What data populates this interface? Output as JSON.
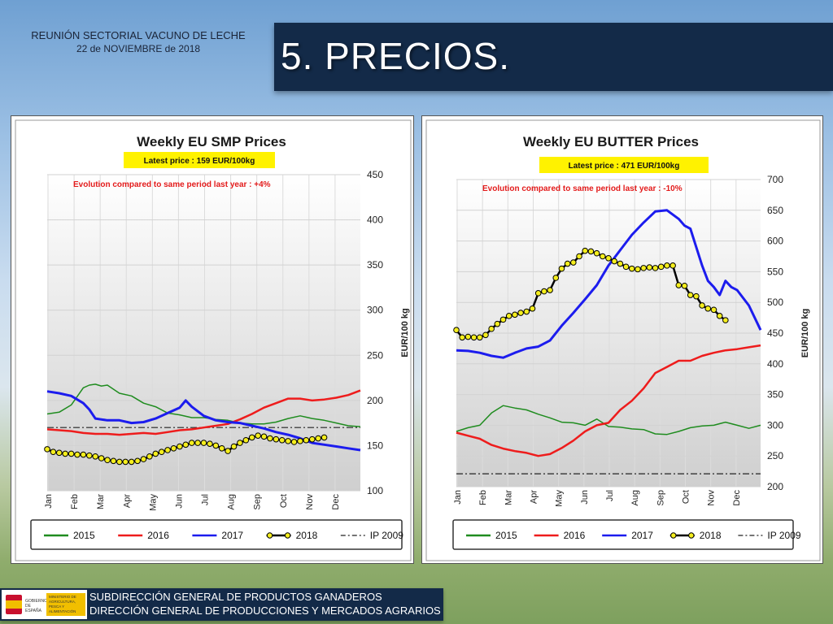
{
  "header": {
    "meeting": "REUNIÓN SECTORIAL VACUNO DE LECHE",
    "date": "22 de NOVIEMBRE de 2018",
    "title": "5. PRECIOS."
  },
  "footer": {
    "logo_gov": "GOBIERNO DE ESPAÑA",
    "logo_ministry": "MINISTERIO DE AGRICULTURA, PESCA Y ALIMENTACIÓN",
    "line1": "SUBDIRECCIÓN GENERAL DE PRODUCTOS GANADEROS",
    "line2": "DIRECCIÓN GENERAL DE PRODUCCIONES Y MERCADOS AGRARIOS"
  },
  "legend_labels": [
    "2015",
    "2016",
    "2017",
    "2018",
    "IP 2009"
  ],
  "colors": {
    "2015": "#1f8c1f",
    "2016": "#ee1c1c",
    "2017": "#1c1cee",
    "2018_line": "#000000",
    "2018_marker": "#f5ee1e",
    "ip": "#222222",
    "latest_box": "#fff200",
    "evolution_text": "#e31b1b"
  },
  "chart_data": [
    {
      "type": "line",
      "title": "Weekly EU SMP Prices",
      "latest_price": "Latest price : 159 EUR/100kg",
      "evolution": "Evolution compared to same period last year : +4%",
      "ylabel": "EUR/100 kg",
      "ylim": [
        100,
        450
      ],
      "yticks": [
        "100",
        "150",
        "200",
        "250",
        "300",
        "350",
        "400",
        "450"
      ],
      "months": [
        "Jan",
        "Feb",
        "Mar",
        "Apr",
        "May",
        "Jun",
        "Jul",
        "Aug",
        "Sep",
        "Oct",
        "Nov",
        "Dec"
      ],
      "xlim": [
        1,
        53
      ],
      "ip2009": 170,
      "series": [
        {
          "name": "2015",
          "x": [
            1,
            3,
            5,
            7,
            8,
            9,
            10,
            11,
            13,
            15,
            17,
            19,
            21,
            23,
            25,
            27,
            29,
            31,
            33,
            35,
            37,
            39,
            41,
            43,
            45,
            47,
            49,
            51,
            53
          ],
          "y": [
            185,
            187,
            195,
            214,
            217,
            218,
            216,
            217,
            208,
            205,
            197,
            193,
            186,
            184,
            181,
            181,
            179,
            178,
            175,
            174,
            174,
            176,
            180,
            183,
            180,
            178,
            175,
            172,
            171
          ]
        },
        {
          "name": "2016",
          "x": [
            1,
            3,
            5,
            7,
            9,
            11,
            13,
            15,
            17,
            19,
            21,
            23,
            25,
            27,
            29,
            31,
            33,
            35,
            37,
            39,
            41,
            43,
            45,
            47,
            49,
            51,
            53
          ],
          "y": [
            168,
            167,
            166,
            164,
            163,
            163,
            162,
            163,
            164,
            163,
            165,
            167,
            168,
            170,
            172,
            174,
            179,
            185,
            192,
            197,
            202,
            202,
            200,
            201,
            203,
            206,
            211
          ]
        },
        {
          "name": "2017",
          "x": [
            1,
            3,
            5,
            7,
            8,
            9,
            11,
            13,
            15,
            17,
            19,
            21,
            23,
            24,
            25,
            27,
            29,
            31,
            33,
            35,
            37,
            39,
            41,
            43,
            45,
            47,
            49,
            51,
            53
          ],
          "y": [
            210,
            208,
            205,
            197,
            190,
            180,
            178,
            178,
            175,
            176,
            180,
            186,
            192,
            200,
            193,
            183,
            178,
            176,
            175,
            172,
            169,
            165,
            162,
            158,
            153,
            151,
            149,
            147,
            145
          ]
        },
        {
          "name": "2018",
          "x": [
            1,
            2,
            3,
            4,
            5,
            6,
            7,
            8,
            9,
            10,
            11,
            12,
            13,
            14,
            15,
            16,
            17,
            18,
            19,
            20,
            21,
            22,
            23,
            24,
            25,
            26,
            27,
            28,
            29,
            30,
            31,
            32,
            33,
            34,
            35,
            36,
            37,
            38,
            39,
            40,
            41,
            42,
            43,
            44,
            45,
            46,
            47
          ],
          "y": [
            146,
            143,
            142,
            141,
            141,
            140,
            140,
            139,
            138,
            136,
            134,
            133,
            132,
            132,
            132,
            133,
            135,
            138,
            141,
            143,
            145,
            147,
            149,
            151,
            153,
            153,
            153,
            152,
            150,
            147,
            144,
            149,
            153,
            156,
            159,
            161,
            160,
            158,
            157,
            156,
            155,
            154,
            155,
            156,
            157,
            158,
            159
          ]
        }
      ]
    },
    {
      "type": "line",
      "title": "Weekly EU BUTTER Prices",
      "latest_price": "Latest price : 471 EUR/100kg",
      "evolution": "Evolution compared to same period last year : -10%",
      "ylabel": "EUR/100 kg",
      "ylim": [
        200,
        700
      ],
      "yticks": [
        "200",
        "250",
        "300",
        "350",
        "400",
        "450",
        "500",
        "550",
        "600",
        "650",
        "700"
      ],
      "months": [
        "Jan",
        "Feb",
        "Mar",
        "Apr",
        "May",
        "Jun",
        "Jul",
        "Aug",
        "Sep",
        "Oct",
        "Nov",
        "Dec"
      ],
      "xlim": [
        1,
        53
      ],
      "ip2009": 221,
      "series": [
        {
          "name": "2015",
          "x": [
            1,
            3,
            5,
            7,
            9,
            11,
            13,
            15,
            17,
            19,
            21,
            23,
            25,
            27,
            29,
            31,
            33,
            35,
            37,
            39,
            41,
            43,
            45,
            47,
            49,
            51,
            53
          ],
          "y": [
            290,
            296,
            300,
            320,
            332,
            328,
            325,
            318,
            312,
            305,
            304,
            300,
            310,
            298,
            297,
            294,
            293,
            286,
            285,
            290,
            296,
            299,
            300,
            305,
            300,
            295,
            300
          ]
        },
        {
          "name": "2016",
          "x": [
            1,
            3,
            5,
            7,
            9,
            11,
            13,
            15,
            17,
            19,
            21,
            23,
            25,
            27,
            29,
            31,
            33,
            35,
            37,
            39,
            41,
            43,
            45,
            47,
            49,
            51,
            53
          ],
          "y": [
            288,
            283,
            278,
            268,
            262,
            258,
            255,
            250,
            253,
            263,
            275,
            290,
            300,
            304,
            325,
            340,
            360,
            385,
            395,
            405,
            405,
            413,
            418,
            422,
            424,
            427,
            430
          ]
        },
        {
          "name": "2017",
          "x": [
            1,
            3,
            5,
            7,
            9,
            11,
            13,
            15,
            17,
            19,
            21,
            23,
            25,
            27,
            29,
            31,
            33,
            35,
            37,
            39,
            40,
            41,
            42,
            43,
            44,
            45,
            46,
            47,
            48,
            49,
            51,
            53
          ],
          "y": [
            422,
            421,
            418,
            413,
            410,
            418,
            425,
            428,
            438,
            462,
            483,
            505,
            528,
            560,
            585,
            610,
            630,
            648,
            650,
            636,
            625,
            620,
            590,
            560,
            535,
            525,
            512,
            535,
            525,
            520,
            495,
            455
          ]
        },
        {
          "name": "2018",
          "x": [
            1,
            2,
            3,
            4,
            5,
            6,
            7,
            8,
            9,
            10,
            11,
            12,
            13,
            14,
            15,
            16,
            17,
            18,
            19,
            20,
            21,
            22,
            23,
            24,
            25,
            26,
            27,
            28,
            29,
            30,
            31,
            32,
            33,
            34,
            35,
            36,
            37,
            38,
            39,
            40,
            41,
            42,
            43,
            44,
            45,
            46,
            47
          ],
          "y": [
            455,
            443,
            444,
            443,
            443,
            447,
            457,
            465,
            472,
            478,
            480,
            483,
            485,
            490,
            515,
            518,
            520,
            540,
            555,
            563,
            565,
            575,
            584,
            583,
            580,
            575,
            572,
            567,
            563,
            558,
            555,
            554,
            556,
            557,
            556,
            558,
            560,
            560,
            528,
            527,
            512,
            510,
            495,
            490,
            488,
            478,
            471
          ]
        }
      ]
    }
  ]
}
